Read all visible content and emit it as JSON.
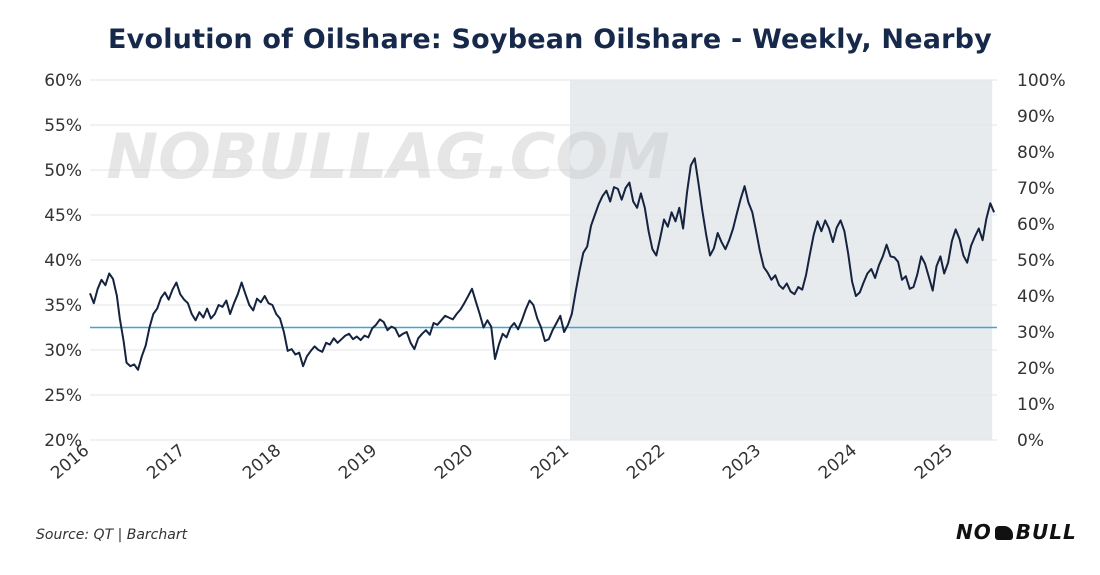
{
  "header": {
    "title": "Evolution of Oilshare: Soybean Oilshare - Weekly, Nearby"
  },
  "footer": {
    "source": "Source: QT | Barchart",
    "logo_left": "NO",
    "logo_right": "BULL"
  },
  "watermark": "NOBULLAG.COM",
  "chart_data": {
    "type": "line",
    "title": "Evolution of Oilshare: Soybean Oilshare - Weekly, Nearby",
    "x_tick_labels": [
      "2016",
      "2017",
      "2018",
      "2019",
      "2020",
      "2021",
      "2022",
      "2023",
      "2024",
      "2025"
    ],
    "y_left": {
      "ylim": [
        20,
        60
      ],
      "ticks": [
        20,
        25,
        30,
        35,
        40,
        45,
        50,
        55,
        60
      ],
      "tick_labels": [
        "20%",
        "25%",
        "30%",
        "35%",
        "40%",
        "45%",
        "50%",
        "55%",
        "60%"
      ]
    },
    "y_right": {
      "ylim": [
        0,
        100
      ],
      "tick_labels": [
        "0%",
        "10%",
        "20%",
        "30%",
        "40%",
        "50%",
        "60%",
        "70%",
        "80%",
        "90%",
        "100%"
      ]
    },
    "grid": "horizontal",
    "highlight_region": {
      "x_start": 2021.0,
      "x_end": 2025.4,
      "color": "#e8ebee"
    },
    "reference_line": {
      "y": 32.5,
      "color": "#3ea6d6"
    },
    "line_color": "#15233f",
    "series": [
      {
        "values": [
          [
            2016.0,
            36.3
          ],
          [
            2016.04,
            35.2
          ],
          [
            2016.08,
            36.8
          ],
          [
            2016.12,
            37.8
          ],
          [
            2016.16,
            37.2
          ],
          [
            2016.2,
            38.5
          ],
          [
            2016.24,
            37.9
          ],
          [
            2016.28,
            36.0
          ],
          [
            2016.31,
            33.5
          ],
          [
            2016.35,
            31.0
          ],
          [
            2016.38,
            28.6
          ],
          [
            2016.42,
            28.2
          ],
          [
            2016.46,
            28.4
          ],
          [
            2016.5,
            27.8
          ],
          [
            2016.54,
            29.3
          ],
          [
            2016.58,
            30.5
          ],
          [
            2016.62,
            32.5
          ],
          [
            2016.66,
            34.0
          ],
          [
            2016.7,
            34.6
          ],
          [
            2016.74,
            35.8
          ],
          [
            2016.78,
            36.4
          ],
          [
            2016.82,
            35.6
          ],
          [
            2016.86,
            36.7
          ],
          [
            2016.9,
            37.5
          ],
          [
            2016.94,
            36.2
          ],
          [
            2016.98,
            35.6
          ],
          [
            2017.02,
            35.2
          ],
          [
            2017.06,
            34.0
          ],
          [
            2017.1,
            33.3
          ],
          [
            2017.14,
            34.2
          ],
          [
            2017.18,
            33.6
          ],
          [
            2017.22,
            34.6
          ],
          [
            2017.26,
            33.5
          ],
          [
            2017.3,
            34.0
          ],
          [
            2017.34,
            35.0
          ],
          [
            2017.38,
            34.8
          ],
          [
            2017.42,
            35.5
          ],
          [
            2017.46,
            34.0
          ],
          [
            2017.5,
            35.2
          ],
          [
            2017.54,
            36.2
          ],
          [
            2017.58,
            37.5
          ],
          [
            2017.62,
            36.2
          ],
          [
            2017.66,
            35.0
          ],
          [
            2017.7,
            34.4
          ],
          [
            2017.74,
            35.7
          ],
          [
            2017.78,
            35.3
          ],
          [
            2017.82,
            36.0
          ],
          [
            2017.86,
            35.2
          ],
          [
            2017.9,
            35.0
          ],
          [
            2017.94,
            34.0
          ],
          [
            2017.98,
            33.5
          ],
          [
            2018.02,
            32.0
          ],
          [
            2018.06,
            29.9
          ],
          [
            2018.1,
            30.1
          ],
          [
            2018.14,
            29.5
          ],
          [
            2018.18,
            29.7
          ],
          [
            2018.22,
            28.2
          ],
          [
            2018.26,
            29.3
          ],
          [
            2018.3,
            29.9
          ],
          [
            2018.34,
            30.4
          ],
          [
            2018.38,
            30.0
          ],
          [
            2018.42,
            29.8
          ],
          [
            2018.46,
            30.8
          ],
          [
            2018.5,
            30.6
          ],
          [
            2018.54,
            31.3
          ],
          [
            2018.58,
            30.8
          ],
          [
            2018.62,
            31.2
          ],
          [
            2018.66,
            31.6
          ],
          [
            2018.7,
            31.8
          ],
          [
            2018.74,
            31.2
          ],
          [
            2018.78,
            31.5
          ],
          [
            2018.82,
            31.1
          ],
          [
            2018.86,
            31.6
          ],
          [
            2018.9,
            31.4
          ],
          [
            2018.94,
            32.4
          ],
          [
            2018.98,
            32.8
          ],
          [
            2019.02,
            33.4
          ],
          [
            2019.06,
            33.1
          ],
          [
            2019.1,
            32.2
          ],
          [
            2019.14,
            32.6
          ],
          [
            2019.18,
            32.4
          ],
          [
            2019.22,
            31.5
          ],
          [
            2019.26,
            31.8
          ],
          [
            2019.3,
            32.0
          ],
          [
            2019.34,
            30.8
          ],
          [
            2019.38,
            30.1
          ],
          [
            2019.42,
            31.3
          ],
          [
            2019.46,
            31.8
          ],
          [
            2019.5,
            32.2
          ],
          [
            2019.54,
            31.7
          ],
          [
            2019.58,
            33.0
          ],
          [
            2019.62,
            32.8
          ],
          [
            2019.66,
            33.3
          ],
          [
            2019.7,
            33.8
          ],
          [
            2019.74,
            33.6
          ],
          [
            2019.78,
            33.4
          ],
          [
            2019.82,
            34.0
          ],
          [
            2019.86,
            34.5
          ],
          [
            2019.9,
            35.2
          ],
          [
            2019.94,
            36.0
          ],
          [
            2019.98,
            36.8
          ],
          [
            2020.02,
            35.4
          ],
          [
            2020.06,
            34.0
          ],
          [
            2020.1,
            32.5
          ],
          [
            2020.14,
            33.3
          ],
          [
            2020.18,
            32.6
          ],
          [
            2020.22,
            29.0
          ],
          [
            2020.26,
            30.6
          ],
          [
            2020.3,
            31.8
          ],
          [
            2020.34,
            31.4
          ],
          [
            2020.38,
            32.5
          ],
          [
            2020.42,
            33.0
          ],
          [
            2020.46,
            32.3
          ],
          [
            2020.5,
            33.3
          ],
          [
            2020.54,
            34.5
          ],
          [
            2020.58,
            35.5
          ],
          [
            2020.62,
            35.0
          ],
          [
            2020.66,
            33.5
          ],
          [
            2020.7,
            32.5
          ],
          [
            2020.74,
            31.0
          ],
          [
            2020.78,
            31.2
          ],
          [
            2020.82,
            32.2
          ],
          [
            2020.86,
            33.0
          ],
          [
            2020.9,
            33.8
          ],
          [
            2020.94,
            32.0
          ],
          [
            2020.98,
            32.8
          ],
          [
            2021.02,
            34.0
          ],
          [
            2021.06,
            36.5
          ],
          [
            2021.1,
            38.8
          ],
          [
            2021.14,
            40.8
          ],
          [
            2021.18,
            41.5
          ],
          [
            2021.22,
            43.8
          ],
          [
            2021.26,
            45.0
          ],
          [
            2021.3,
            46.2
          ],
          [
            2021.34,
            47.1
          ],
          [
            2021.38,
            47.7
          ],
          [
            2021.42,
            46.5
          ],
          [
            2021.46,
            48.1
          ],
          [
            2021.5,
            47.9
          ],
          [
            2021.54,
            46.7
          ],
          [
            2021.58,
            48.0
          ],
          [
            2021.62,
            48.6
          ],
          [
            2021.66,
            46.5
          ],
          [
            2021.7,
            45.8
          ],
          [
            2021.74,
            47.4
          ],
          [
            2021.78,
            45.8
          ],
          [
            2021.82,
            43.2
          ],
          [
            2021.86,
            41.2
          ],
          [
            2021.9,
            40.5
          ],
          [
            2021.94,
            42.4
          ],
          [
            2021.98,
            44.5
          ],
          [
            2022.02,
            43.7
          ],
          [
            2022.06,
            45.3
          ],
          [
            2022.1,
            44.3
          ],
          [
            2022.14,
            45.8
          ],
          [
            2022.18,
            43.5
          ],
          [
            2022.22,
            47.5
          ],
          [
            2022.26,
            50.5
          ],
          [
            2022.3,
            51.3
          ],
          [
            2022.34,
            48.5
          ],
          [
            2022.38,
            45.5
          ],
          [
            2022.42,
            42.8
          ],
          [
            2022.46,
            40.5
          ],
          [
            2022.5,
            41.3
          ],
          [
            2022.54,
            43.0
          ],
          [
            2022.58,
            42.0
          ],
          [
            2022.62,
            41.2
          ],
          [
            2022.66,
            42.2
          ],
          [
            2022.7,
            43.5
          ],
          [
            2022.74,
            45.2
          ],
          [
            2022.78,
            46.8
          ],
          [
            2022.82,
            48.2
          ],
          [
            2022.86,
            46.4
          ],
          [
            2022.9,
            45.3
          ],
          [
            2022.94,
            43.2
          ],
          [
            2022.98,
            41.0
          ],
          [
            2023.02,
            39.2
          ],
          [
            2023.06,
            38.6
          ],
          [
            2023.1,
            37.8
          ],
          [
            2023.14,
            38.3
          ],
          [
            2023.18,
            37.2
          ],
          [
            2023.22,
            36.8
          ],
          [
            2023.26,
            37.4
          ],
          [
            2023.3,
            36.5
          ],
          [
            2023.34,
            36.2
          ],
          [
            2023.38,
            37.0
          ],
          [
            2023.42,
            36.7
          ],
          [
            2023.46,
            38.3
          ],
          [
            2023.5,
            40.6
          ],
          [
            2023.54,
            42.8
          ],
          [
            2023.58,
            44.3
          ],
          [
            2023.62,
            43.2
          ],
          [
            2023.66,
            44.4
          ],
          [
            2023.7,
            43.5
          ],
          [
            2023.74,
            42.0
          ],
          [
            2023.78,
            43.6
          ],
          [
            2023.82,
            44.4
          ],
          [
            2023.86,
            43.2
          ],
          [
            2023.9,
            40.7
          ],
          [
            2023.94,
            37.6
          ],
          [
            2023.98,
            36.0
          ],
          [
            2024.02,
            36.4
          ],
          [
            2024.06,
            37.5
          ],
          [
            2024.1,
            38.5
          ],
          [
            2024.14,
            39.0
          ],
          [
            2024.18,
            38.0
          ],
          [
            2024.22,
            39.4
          ],
          [
            2024.26,
            40.4
          ],
          [
            2024.3,
            41.7
          ],
          [
            2024.34,
            40.4
          ],
          [
            2024.38,
            40.3
          ],
          [
            2024.42,
            39.8
          ],
          [
            2024.46,
            37.8
          ],
          [
            2024.5,
            38.2
          ],
          [
            2024.54,
            36.8
          ],
          [
            2024.58,
            37.0
          ],
          [
            2024.62,
            38.4
          ],
          [
            2024.66,
            40.4
          ],
          [
            2024.7,
            39.6
          ],
          [
            2024.74,
            38.1
          ],
          [
            2024.78,
            36.6
          ],
          [
            2024.82,
            39.3
          ],
          [
            2024.86,
            40.4
          ],
          [
            2024.9,
            38.5
          ],
          [
            2024.94,
            39.7
          ],
          [
            2024.98,
            42.1
          ],
          [
            2025.02,
            43.4
          ],
          [
            2025.06,
            42.3
          ],
          [
            2025.1,
            40.5
          ],
          [
            2025.14,
            39.7
          ],
          [
            2025.18,
            41.6
          ],
          [
            2025.22,
            42.6
          ],
          [
            2025.26,
            43.5
          ],
          [
            2025.3,
            42.2
          ],
          [
            2025.34,
            44.6
          ],
          [
            2025.38,
            46.3
          ],
          [
            2025.42,
            45.3
          ]
        ]
      }
    ]
  }
}
